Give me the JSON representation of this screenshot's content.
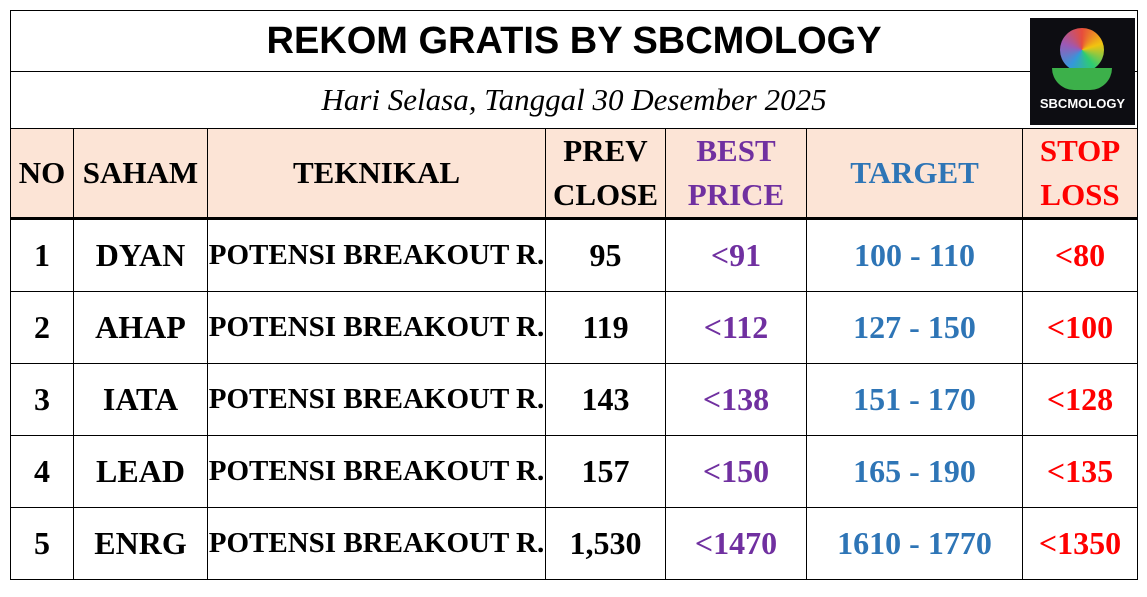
{
  "title": "REKOM GRATIS BY SBCMOLOGY",
  "subtitle": "Hari Selasa, Tanggal 30 Desember 2025",
  "logo": {
    "text": "SBCMOLOGY"
  },
  "table": {
    "headers": [
      [
        "NO"
      ],
      [
        "SAHAM"
      ],
      [
        "TEKNIKAL"
      ],
      [
        "PREV",
        "CLOSE"
      ],
      [
        "BEST",
        "PRICE"
      ],
      [
        "TARGET"
      ],
      [
        "STOP",
        "LOSS"
      ]
    ],
    "rows": [
      [
        "1",
        "DYAN",
        "POTENSI BREAKOUT R.",
        "95",
        "<91",
        "100 - 110",
        "<80"
      ],
      [
        "2",
        "AHAP",
        "POTENSI BREAKOUT R.",
        "119",
        "<112",
        "127 - 150",
        "<100"
      ],
      [
        "3",
        "IATA",
        "POTENSI BREAKOUT R.",
        "143",
        "<138",
        "151 - 170",
        "<128"
      ],
      [
        "4",
        "LEAD",
        "POTENSI BREAKOUT R.",
        "157",
        "<150",
        "165 - 190",
        "<135"
      ],
      [
        "5",
        "ENRG",
        "POTENSI BREAKOUT R.",
        "1,530",
        "<1470",
        "1610 - 1770",
        "<1350"
      ]
    ]
  }
}
